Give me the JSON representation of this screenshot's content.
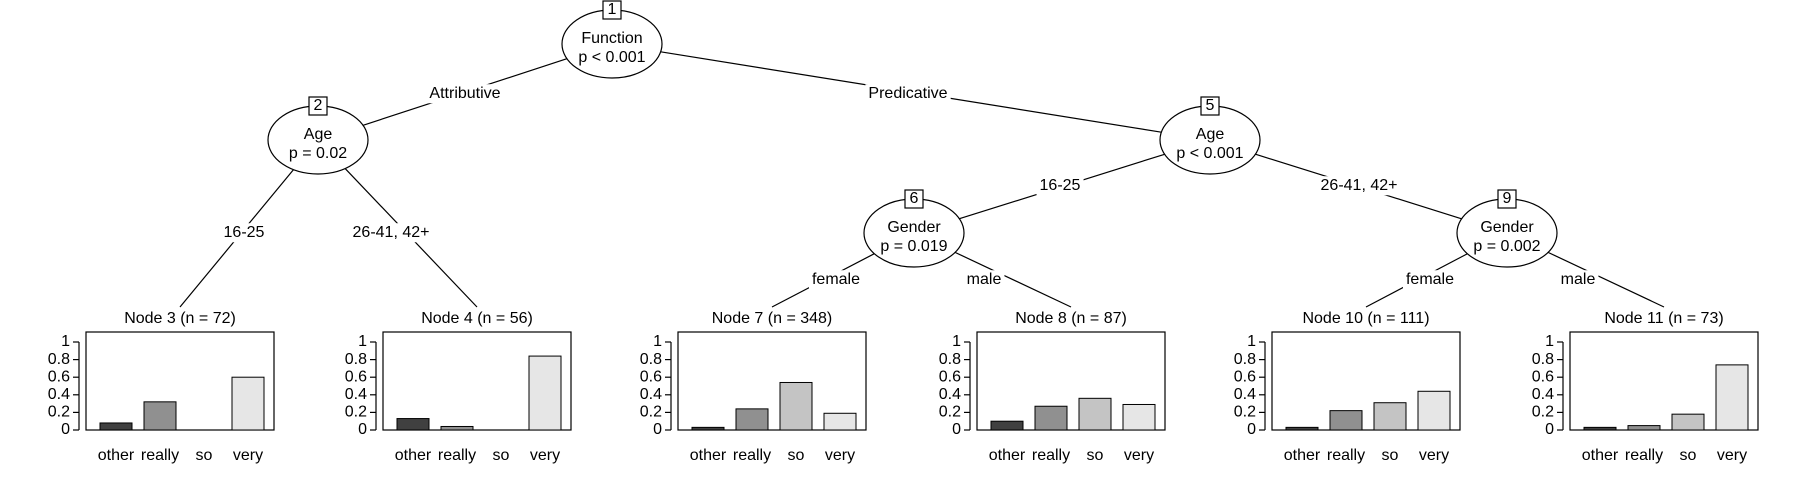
{
  "inner_nodes": [
    {
      "id": "1",
      "variable": "Function",
      "pvalue": "p < 0.001"
    },
    {
      "id": "2",
      "variable": "Age",
      "pvalue": "p = 0.02"
    },
    {
      "id": "5",
      "variable": "Age",
      "pvalue": "p < 0.001"
    },
    {
      "id": "6",
      "variable": "Gender",
      "pvalue": "p = 0.019"
    },
    {
      "id": "9",
      "variable": "Gender",
      "pvalue": "p = 0.002"
    }
  ],
  "edges": [
    {
      "from": "1",
      "to": "2",
      "label": "Attributive"
    },
    {
      "from": "1",
      "to": "5",
      "label": "Predicative"
    },
    {
      "from": "2",
      "to": "3",
      "label": "16-25"
    },
    {
      "from": "2",
      "to": "4",
      "label": "26-41, 42+"
    },
    {
      "from": "5",
      "to": "6",
      "label": "16-25"
    },
    {
      "from": "5",
      "to": "9",
      "label": "26-41, 42+"
    },
    {
      "from": "6",
      "to": "7",
      "label": "female"
    },
    {
      "from": "6",
      "to": "8",
      "label": "male"
    },
    {
      "from": "9",
      "to": "10",
      "label": "female"
    },
    {
      "from": "9",
      "to": "11",
      "label": "male"
    }
  ],
  "chart_data": {
    "type": "bar",
    "categories": [
      "other",
      "really",
      "so",
      "very"
    ],
    "y_ticks": [
      "0",
      "0.2",
      "0.4",
      "0.6",
      "0.8",
      "1"
    ],
    "ylim": [
      0,
      1
    ],
    "bar_colors": [
      "#404040",
      "#909090",
      "#c4c4c4",
      "#e6e6e6"
    ],
    "terminals": [
      {
        "id": "3",
        "title": "Node 3 (n = 72)",
        "values": [
          0.08,
          0.32,
          0.0,
          0.6
        ]
      },
      {
        "id": "4",
        "title": "Node 4 (n = 56)",
        "values": [
          0.13,
          0.04,
          0.0,
          0.84
        ]
      },
      {
        "id": "7",
        "title": "Node 7 (n = 348)",
        "values": [
          0.03,
          0.24,
          0.54,
          0.19
        ]
      },
      {
        "id": "8",
        "title": "Node 8 (n = 87)",
        "values": [
          0.1,
          0.27,
          0.36,
          0.29
        ]
      },
      {
        "id": "10",
        "title": "Node 10 (n = 111)",
        "values": [
          0.03,
          0.22,
          0.31,
          0.44
        ]
      },
      {
        "id": "11",
        "title": "Node 11 (n = 73)",
        "values": [
          0.03,
          0.05,
          0.18,
          0.74
        ]
      }
    ]
  }
}
